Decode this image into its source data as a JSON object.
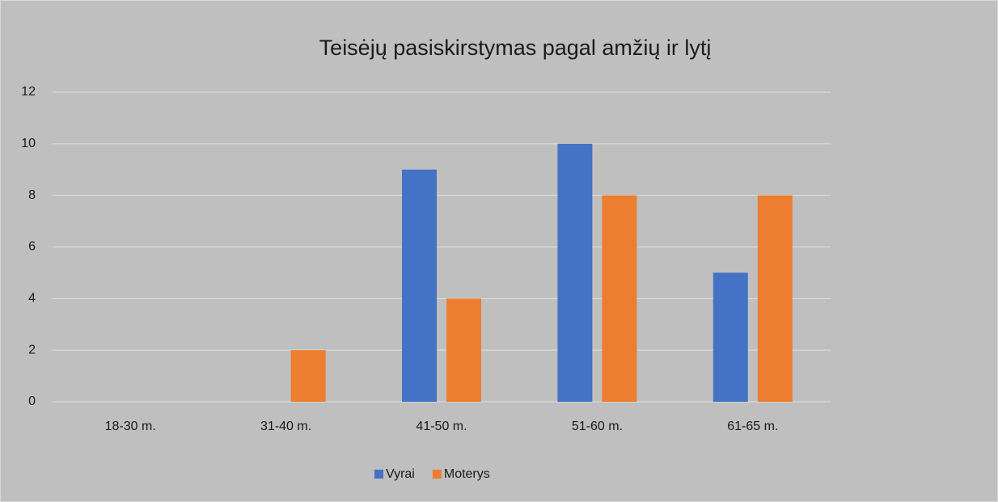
{
  "chart_data": {
    "type": "bar",
    "title": "Teisėjų pasiskirstymas pagal amžių ir lytį",
    "categories": [
      "18-30 m.",
      "31-40 m.",
      "41-50 m.",
      "51-60 m.",
      "61-65 m."
    ],
    "series": [
      {
        "name": "Vyrai",
        "color": "#4472c4",
        "values": [
          0,
          0,
          9,
          10,
          5
        ]
      },
      {
        "name": "Moterys",
        "color": "#ed7d31",
        "values": [
          0,
          2,
          4,
          8,
          8
        ]
      }
    ],
    "ylim": [
      0,
      12
    ],
    "yticks": [
      0,
      2,
      4,
      6,
      8,
      10,
      12
    ],
    "grid": true,
    "legend": "bottom"
  }
}
